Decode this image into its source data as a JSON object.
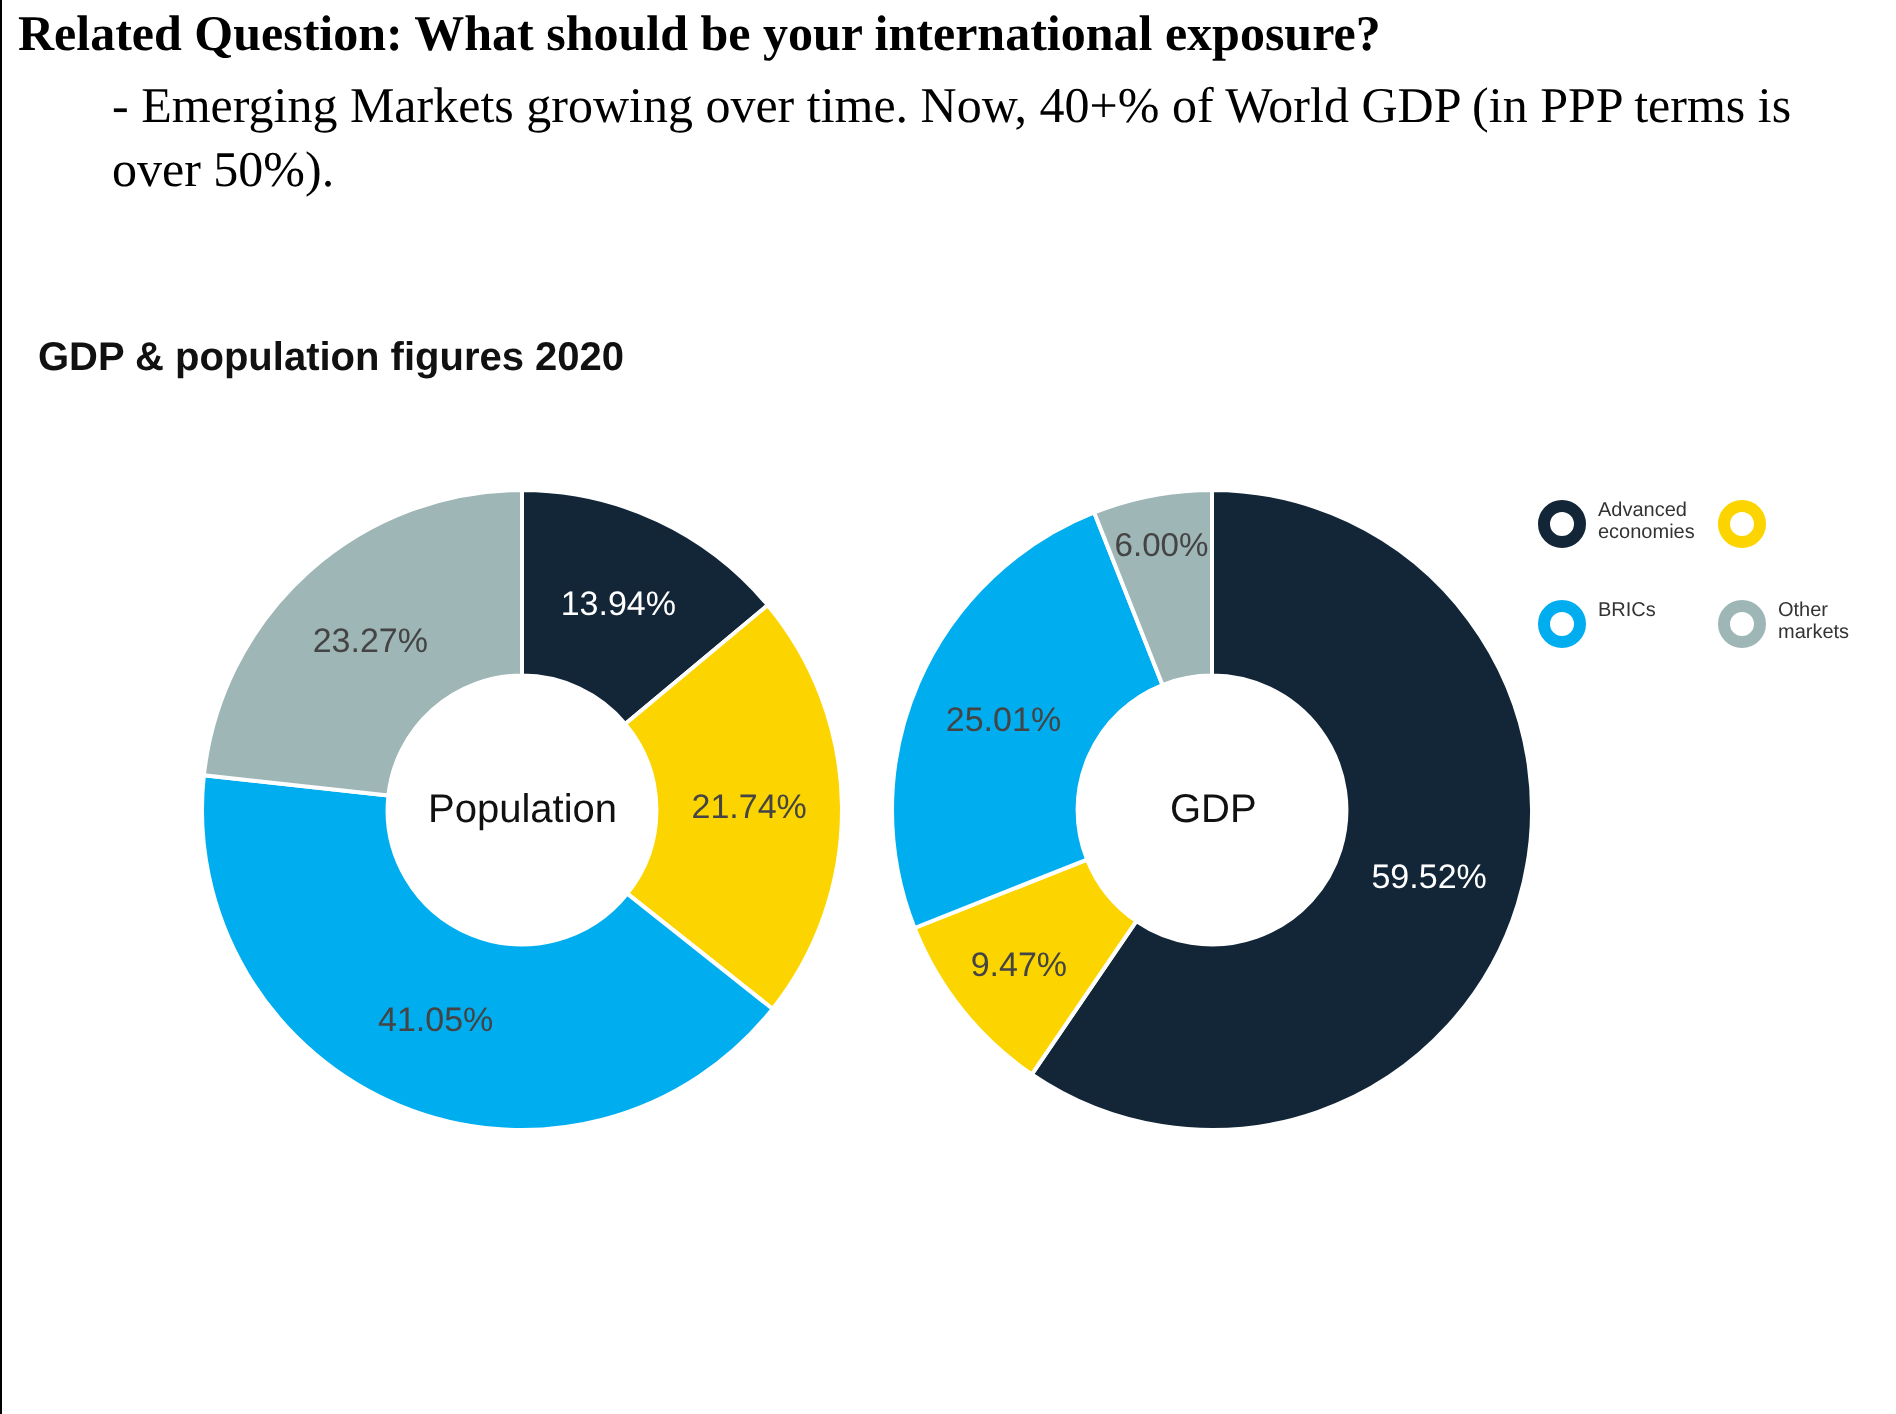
{
  "chart_data": [
    {
      "type": "donut",
      "title": "Related Question: What should be your international exposure?",
      "subtitle": "- Emerging Markets growing over time. Now, 40+% of World GDP (in PPP terms is over 50%).",
      "annotations": [
        "GDP & population figures 2020",
        "Population"
      ],
      "categories": [
        null,
        null,
        null,
        null
      ],
      "values": [
        13.94,
        21.74,
        41.05,
        23.27
      ],
      "value_labels": [
        "13.94%",
        "21.74%",
        "41.05%",
        "23.27%"
      ],
      "colors": [
        "#132637",
        "#fcd500",
        "#00aeef",
        "#9eb6b6"
      ]
    },
    {
      "type": "donut",
      "annotations": [
        "GDP"
      ],
      "categories": [
        "Advanced economies",
        null,
        "BRICs",
        "Other markets"
      ],
      "values": [
        59.52,
        9.47,
        25.01,
        6.0
      ],
      "value_labels": [
        "59.52%",
        "9.47%",
        "25.01%",
        "6.00%"
      ],
      "colors": [
        "#132637",
        "#fcd500",
        "#00aeef",
        "#9eb6b6"
      ],
      "legend": "right"
    }
  ]
}
